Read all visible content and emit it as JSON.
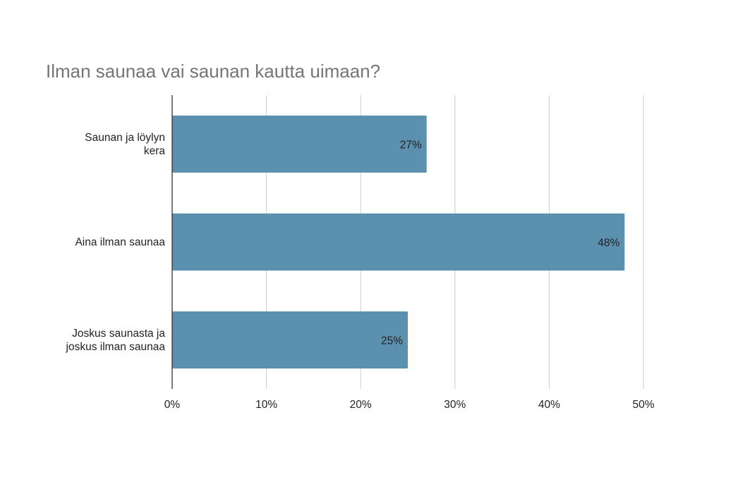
{
  "chart_data": {
    "type": "bar",
    "orientation": "horizontal",
    "title": "Ilman saunaa vai saunan kautta uimaan?",
    "categories": [
      [
        "Saunan ja löylyn",
        "kera"
      ],
      [
        "Aina ilman saunaa"
      ],
      [
        "Joskus saunasta ja",
        "joskus ilman saunaa"
      ]
    ],
    "values": [
      27,
      48,
      25
    ],
    "data_labels": [
      "27%",
      "48%",
      "25%"
    ],
    "x_ticks": [
      "0%",
      "10%",
      "20%",
      "30%",
      "40%",
      "50%"
    ],
    "xlim": [
      0,
      50
    ],
    "grid": true,
    "legend": "none",
    "bar_color": "#5b91ae"
  }
}
